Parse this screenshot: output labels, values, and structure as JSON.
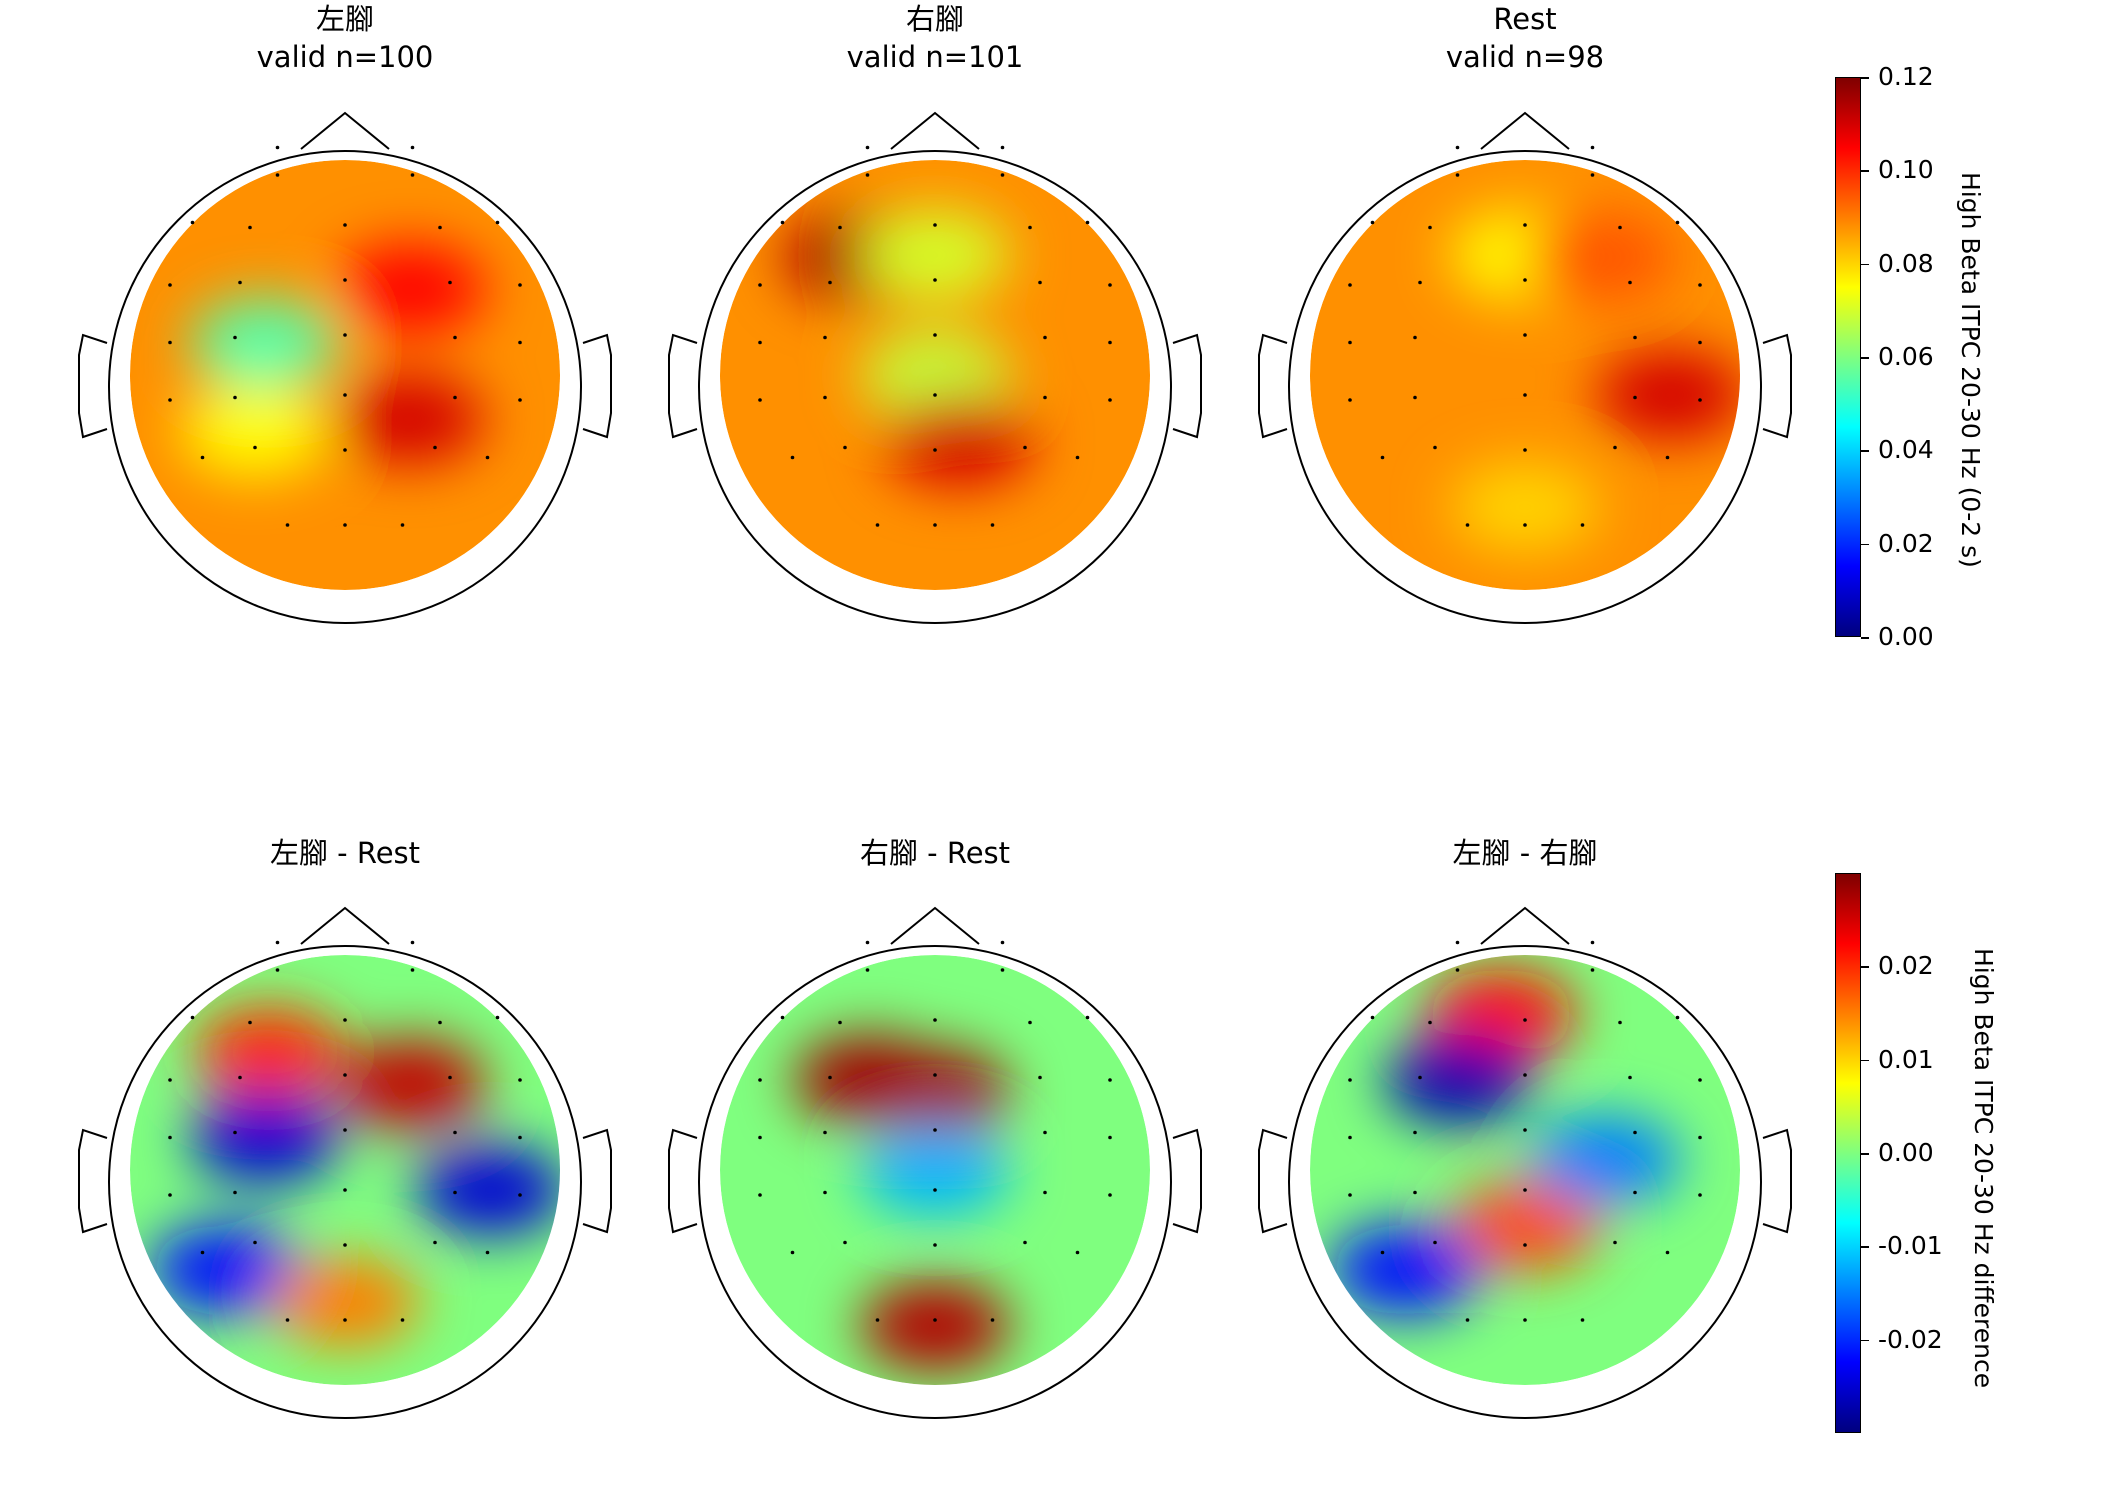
{
  "colormap": [
    "#00007f",
    "#0000ff",
    "#007fff",
    "#00ffff",
    "#7fff7f",
    "#ffff00",
    "#ff7f00",
    "#ff0000",
    "#7f0000"
  ],
  "chart_data": [
    {
      "type": "heatmap",
      "subtype": "eeg-topomap",
      "title_line1": "左腳",
      "title_line2": "valid n=100",
      "clim": [
        0,
        0.12
      ],
      "spots": [
        {
          "loc": "C3",
          "level": 0.055
        },
        {
          "loc": "FC4",
          "level": 0.105
        },
        {
          "loc": "CP4",
          "level": 0.11
        },
        {
          "loc": "P3",
          "level": 0.075
        }
      ]
    },
    {
      "type": "heatmap",
      "subtype": "eeg-topomap",
      "title_line1": "右腳",
      "title_line2": "valid n=101",
      "clim": [
        0,
        0.12
      ],
      "spots": [
        {
          "loc": "F3",
          "level": 0.115
        },
        {
          "loc": "Fz",
          "level": 0.07
        },
        {
          "loc": "Cz",
          "level": 0.068
        },
        {
          "loc": "CPz",
          "level": 0.11
        }
      ]
    },
    {
      "type": "heatmap",
      "subtype": "eeg-topomap",
      "title_line1": "Rest",
      "title_line2": "valid n=98",
      "clim": [
        0,
        0.12
      ],
      "spots": [
        {
          "loc": "Fz",
          "level": 0.075
        },
        {
          "loc": "F4",
          "level": 0.095
        },
        {
          "loc": "T8",
          "level": 0.11
        },
        {
          "loc": "Pz",
          "level": 0.08
        }
      ]
    },
    {
      "type": "heatmap",
      "subtype": "eeg-topomap",
      "title_line1": "左腳 - Rest",
      "title_line2": "",
      "clim": [
        -0.03,
        0.03
      ],
      "spots": [
        {
          "loc": "F3",
          "level": 0.02
        },
        {
          "loc": "FC4",
          "level": 0.026
        },
        {
          "loc": "C3",
          "level": -0.025
        },
        {
          "loc": "T8",
          "level": -0.025
        },
        {
          "loc": "P7",
          "level": -0.022
        },
        {
          "loc": "Pz",
          "level": 0.015
        }
      ]
    },
    {
      "type": "heatmap",
      "subtype": "eeg-topomap",
      "title_line1": "右腳 - Rest",
      "title_line2": "",
      "clim": [
        -0.03,
        0.03
      ],
      "spots": [
        {
          "loc": "FC3",
          "level": 0.028
        },
        {
          "loc": "FCz",
          "level": 0.028
        },
        {
          "loc": "Cz",
          "level": -0.012
        },
        {
          "loc": "Oz",
          "level": 0.027
        }
      ]
    },
    {
      "type": "heatmap",
      "subtype": "eeg-topomap",
      "title_line1": "左腳 - 右腳",
      "title_line2": "",
      "clim": [
        -0.03,
        0.03
      ],
      "spots": [
        {
          "loc": "AF3",
          "level": 0.022
        },
        {
          "loc": "FC3",
          "level": -0.027
        },
        {
          "loc": "CP3",
          "level": 0.018
        },
        {
          "loc": "C4",
          "level": -0.015
        },
        {
          "loc": "P7",
          "level": -0.022
        }
      ]
    }
  ],
  "colorbars": [
    {
      "label": "High Beta ITPC 20-30 Hz (0-2 s)",
      "ticks": [
        "0.12",
        "0.10",
        "0.08",
        "0.06",
        "0.04",
        "0.02",
        "0.00"
      ]
    },
    {
      "label": "High Beta ITPC 20-30 Hz difference",
      "ticks": [
        "0.02",
        "0.01",
        "0.00",
        "-0.01",
        "-0.02"
      ]
    }
  ]
}
